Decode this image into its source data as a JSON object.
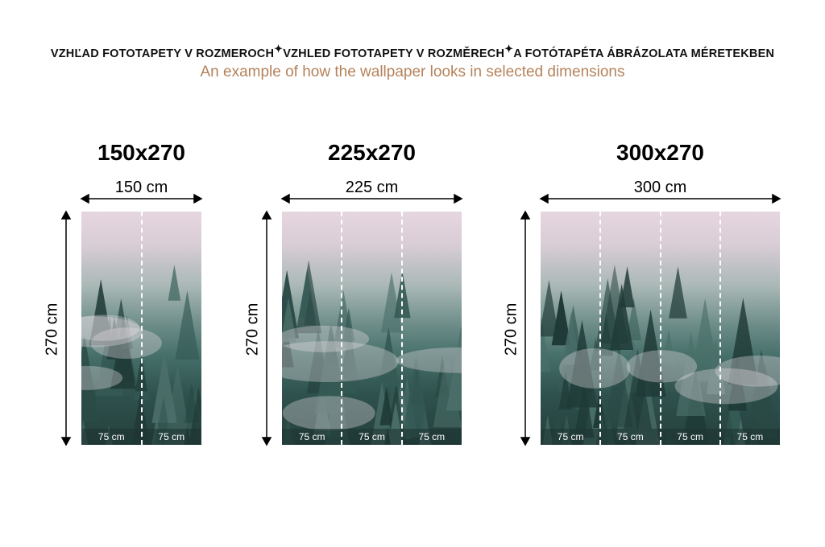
{
  "header": {
    "titles": [
      "VZHĽAD FOTOTAPETY V ROZMEROCH",
      "VZHLED FOTOTAPETY V ROZMĚRECH",
      "A FOTÓTAPÉTA ÁBRÁZOLATA MÉRETEKBEN"
    ],
    "separator_icon": "sparkle-icon",
    "subtitle": "An example of how the wallpaper looks in selected dimensions"
  },
  "colors": {
    "subtitle": "#b5825a",
    "text": "#000000",
    "fog_top": "#e6d6df",
    "forest_dark": "#243f3c"
  },
  "panels": [
    {
      "title": "150x270",
      "width_label": "150 cm",
      "height_label": "270 cm",
      "segments": [
        "75 cm",
        "75 cm"
      ]
    },
    {
      "title": "225x270",
      "width_label": "225 cm",
      "height_label": "270 cm",
      "segments": [
        "75 cm",
        "75 cm",
        "75 cm"
      ]
    },
    {
      "title": "300x270",
      "width_label": "300 cm",
      "height_label": "270 cm",
      "segments": [
        "75 cm",
        "75 cm",
        "75 cm",
        "75 cm"
      ]
    }
  ]
}
